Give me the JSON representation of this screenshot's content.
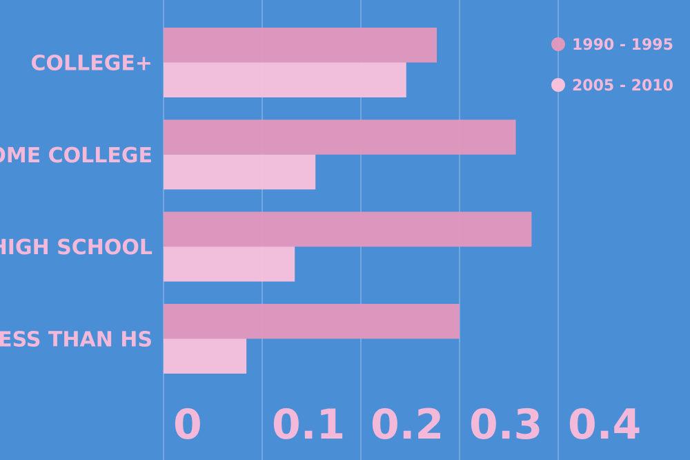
{
  "chart_data": {
    "type": "bar",
    "orientation": "horizontal",
    "categories": [
      "COLLEGE+",
      "SOME COLLEGE",
      "HIGH SCHOOL",
      "LESS THAN HS"
    ],
    "series": [
      {
        "name": "1990 - 1995",
        "color": "#e198bd",
        "values": [
          0.277,
          0.357,
          0.373,
          0.3
        ]
      },
      {
        "name": "2005 - 2010",
        "color": "#f7c0db",
        "values": [
          0.246,
          0.154,
          0.133,
          0.084
        ]
      }
    ],
    "x_ticks": [
      "0",
      "0.1",
      "0.2",
      "0.3",
      "0.4"
    ],
    "xlim": [
      0,
      0.5
    ],
    "grid": true,
    "legend_position": "top-right",
    "background_color": "#4a8ed6",
    "text_color": "#f4b8d9"
  }
}
